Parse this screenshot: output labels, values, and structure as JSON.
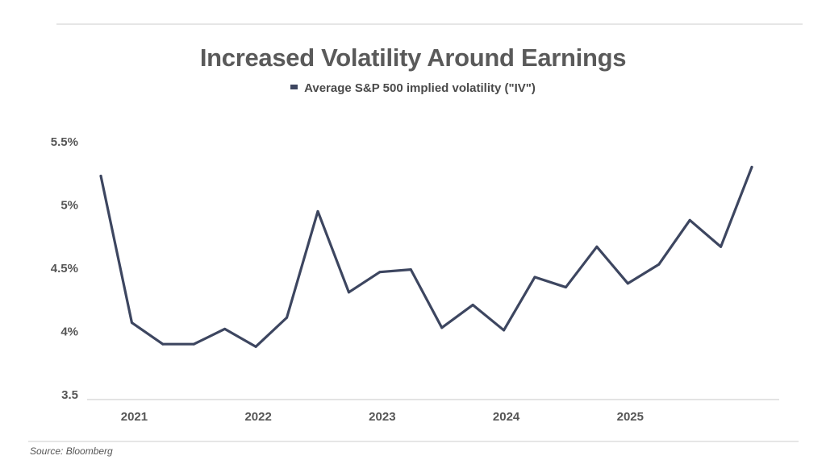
{
  "chart_data": {
    "type": "line",
    "title": "Increased Volatility Around Earnings",
    "source": "Source: Bloomberg",
    "series": [
      {
        "name": "Average S&P 500 implied volatility (\"IV\")",
        "color": "#3d4660",
        "values": [
          5.23,
          4.07,
          3.9,
          3.9,
          4.02,
          3.88,
          4.11,
          4.95,
          4.31,
          4.47,
          4.49,
          4.03,
          4.21,
          4.01,
          4.43,
          4.35,
          4.67,
          4.38,
          4.53,
          4.88,
          4.67,
          5.3
        ]
      }
    ],
    "x": [
      "2020 Q4",
      "2021 Q1",
      "2021 Q2",
      "2021 Q3",
      "2021 Q4",
      "2022 Q1",
      "2022 Q2",
      "2022 Q3",
      "2022 Q4",
      "2023 Q1",
      "2023 Q2",
      "2023 Q3",
      "2023 Q4",
      "2024 Q1",
      "2024 Q2",
      "2024 Q3",
      "2024 Q4",
      "2025 Q1",
      "2025 Q2",
      "2025 Q3",
      "2025 Q4",
      "2026 Q1"
    ],
    "x_tick_labels": [
      {
        "label": "2021",
        "at": "2021 Q1"
      },
      {
        "label": "2022",
        "at": "2022 Q1"
      },
      {
        "label": "2023",
        "at": "2023 Q1"
      },
      {
        "label": "2024",
        "at": "2024 Q1"
      },
      {
        "label": "2025",
        "at": "2025 Q1"
      }
    ],
    "y_ticks": [
      {
        "value": 3.5,
        "label": "3.5"
      },
      {
        "value": 4,
        "label": "4%"
      },
      {
        "value": 4.5,
        "label": "4.5%"
      },
      {
        "value": 5,
        "label": "5%"
      },
      {
        "value": 5.5,
        "label": "5.5%"
      }
    ],
    "ylim": [
      3.5,
      5.5
    ],
    "grid": false,
    "legend_position": "top-center"
  }
}
